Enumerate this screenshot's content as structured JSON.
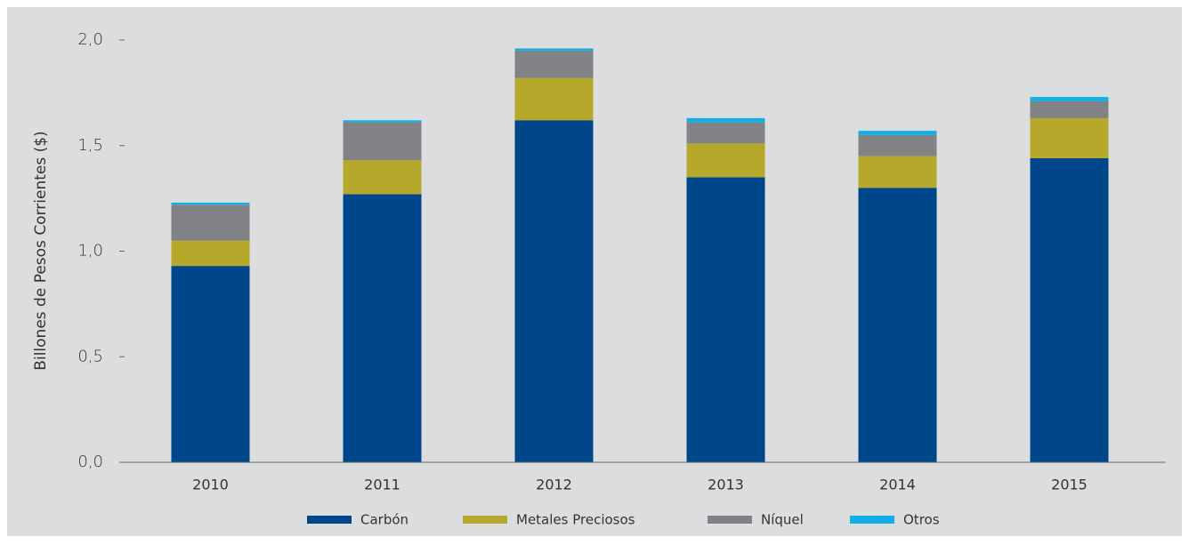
{
  "chart_data": {
    "type": "stacked_bar",
    "y_label": "Billones de Pesos Corrientes ($)",
    "categories": [
      "2010",
      "2011",
      "2012",
      "2013",
      "2014",
      "2015"
    ],
    "series": [
      {
        "name": "Carbón",
        "color": "#00468b",
        "values": [
          0.93,
          1.27,
          1.62,
          1.35,
          1.3,
          1.44
        ]
      },
      {
        "name": "Metales Preciosos",
        "color": "#b5a82a",
        "values": [
          0.12,
          0.16,
          0.2,
          0.16,
          0.15,
          0.19
        ]
      },
      {
        "name": "Níquel",
        "color": "#808285",
        "values": [
          0.17,
          0.18,
          0.13,
          0.1,
          0.1,
          0.08
        ]
      },
      {
        "name": "Otros",
        "color": "#12aee8",
        "values": [
          0.01,
          0.01,
          0.01,
          0.02,
          0.02,
          0.02
        ]
      }
    ],
    "ylim": [
      0,
      2
    ],
    "yticks": [
      {
        "value": 0,
        "label": "0,0"
      },
      {
        "value": 0.5,
        "label": "0,5"
      },
      {
        "value": 1,
        "label": "1,0"
      },
      {
        "value": 1.5,
        "label": "1,5"
      },
      {
        "value": 2,
        "label": "2,0"
      }
    ],
    "legend": "bottom"
  }
}
